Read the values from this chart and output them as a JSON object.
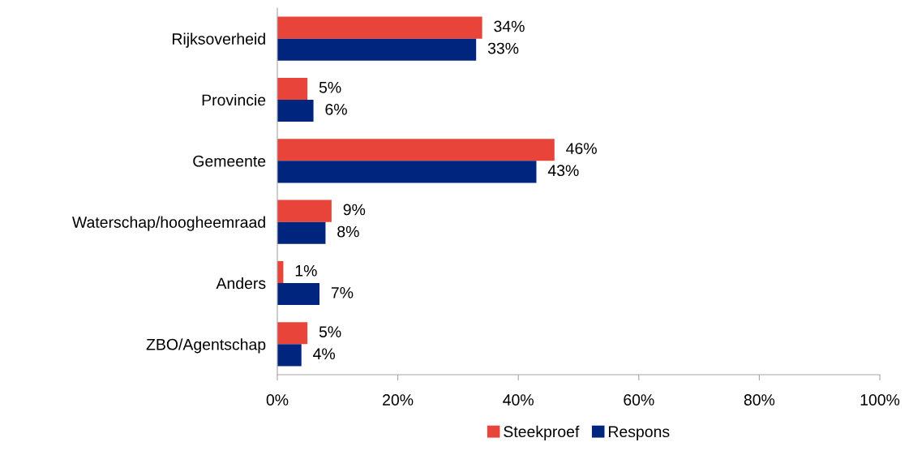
{
  "chart_data": {
    "type": "bar",
    "orientation": "horizontal",
    "categories": [
      "Rijksoverheid",
      "Provincie",
      "Gemeente",
      "Waterschap/hoogheemraad",
      "Anders",
      "ZBO/Agentschap"
    ],
    "series": [
      {
        "name": "Steekproef",
        "color": "#e8443a",
        "values": [
          34,
          5,
          46,
          9,
          1,
          5
        ],
        "value_labels": [
          "34%",
          "5%",
          "46%",
          "9%",
          "1%",
          "5%"
        ]
      },
      {
        "name": "Respons",
        "color": "#00257e",
        "values": [
          33,
          6,
          43,
          8,
          7,
          4
        ],
        "value_labels": [
          "33%",
          "6%",
          "43%",
          "8%",
          "7%",
          "4%"
        ]
      }
    ],
    "xlim": [
      0,
      100
    ],
    "xticks": [
      {
        "value": 0,
        "label": "0%"
      },
      {
        "value": 20,
        "label": "20%"
      },
      {
        "value": 40,
        "label": "40%"
      },
      {
        "value": 60,
        "label": "60%"
      },
      {
        "value": 80,
        "label": "80%"
      },
      {
        "value": 100,
        "label": "100%"
      }
    ],
    "grid": false,
    "legend": "bottom"
  }
}
